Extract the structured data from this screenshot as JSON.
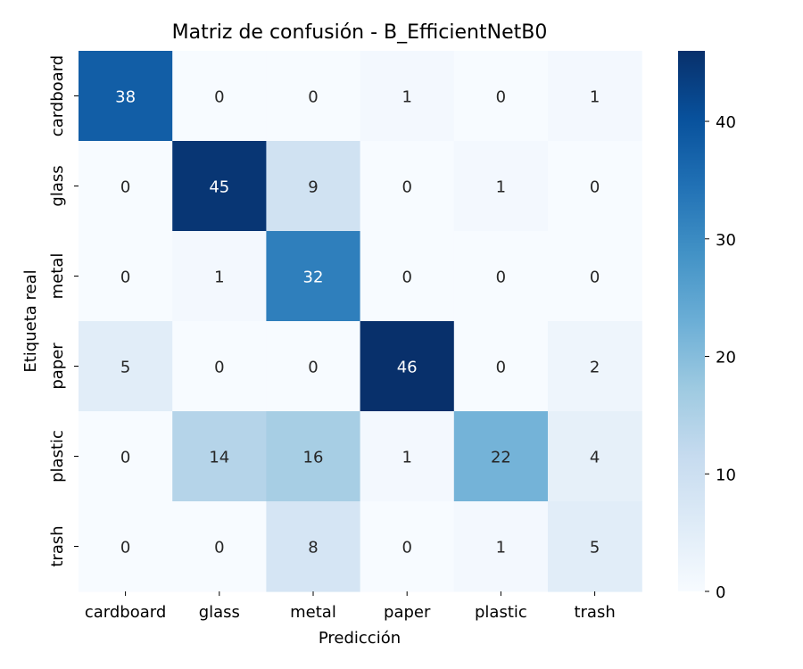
{
  "chart_data": {
    "type": "heatmap",
    "title": "Matriz de confusión - B_EfficientNetB0",
    "xlabel": "Predicción",
    "ylabel": "Etiqueta real",
    "x_categories": [
      "cardboard",
      "glass",
      "metal",
      "paper",
      "plastic",
      "trash"
    ],
    "y_categories": [
      "cardboard",
      "glass",
      "metal",
      "paper",
      "plastic",
      "trash"
    ],
    "matrix": [
      [
        38,
        0,
        0,
        1,
        0,
        1
      ],
      [
        0,
        45,
        9,
        0,
        1,
        0
      ],
      [
        0,
        1,
        32,
        0,
        0,
        0
      ],
      [
        5,
        0,
        0,
        46,
        0,
        2
      ],
      [
        0,
        14,
        16,
        1,
        22,
        4
      ],
      [
        0,
        0,
        8,
        0,
        1,
        5
      ]
    ],
    "colorbar": {
      "min": 0,
      "max": 46,
      "ticks": [
        "0",
        "10",
        "20",
        "30",
        "40"
      ],
      "colormap": "Blues"
    }
  }
}
